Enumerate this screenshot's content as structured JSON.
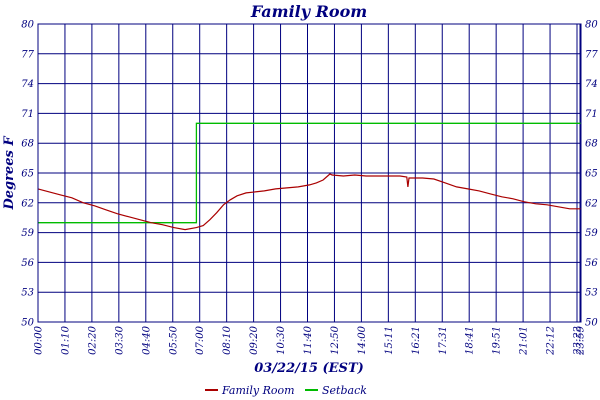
{
  "chart_data": {
    "type": "line",
    "title": "Family Room",
    "xlabel": "03/22/15 (EST)",
    "ylabel": "Degrees F",
    "ylim": [
      50,
      80
    ],
    "y_ticks": [
      50,
      53,
      56,
      59,
      62,
      65,
      68,
      71,
      74,
      77,
      80
    ],
    "x_range_hours": [
      0,
      24
    ],
    "x_tick_labels": [
      "00:00",
      "01:10",
      "02:20",
      "03:30",
      "04:40",
      "05:50",
      "07:00",
      "08:10",
      "09:20",
      "10:30",
      "11:40",
      "12:50",
      "14:00",
      "15:11",
      "16:21",
      "17:31",
      "18:41",
      "19:51",
      "21:01",
      "22:12",
      "23:22",
      "23:59"
    ],
    "grid": true,
    "legend_position": "bottom",
    "colors": {
      "axes": "#00007f",
      "grid": "#00007f",
      "family_room": "#aa0000",
      "setback": "#00bb00",
      "title": "#00007f"
    },
    "series": [
      {
        "name": "Family Room",
        "color": "#aa0000",
        "x_hours": [
          0,
          0.5,
          1.0,
          1.5,
          2.0,
          2.5,
          3.0,
          3.5,
          4.0,
          4.5,
          5.0,
          5.5,
          6.0,
          6.5,
          7.0,
          7.3,
          7.6,
          7.9,
          8.2,
          8.5,
          8.8,
          9.2,
          9.6,
          10.0,
          10.5,
          11.0,
          11.5,
          12.0,
          12.3,
          12.6,
          12.9,
          13.0,
          13.5,
          14.0,
          14.5,
          15.0,
          15.5,
          16.0,
          16.3,
          16.35,
          16.4,
          16.5,
          17.0,
          17.5,
          18.0,
          18.5,
          19.0,
          19.5,
          20.0,
          20.5,
          21.0,
          21.5,
          22.0,
          22.5,
          23.0,
          23.5,
          24.0
        ],
        "values": [
          63.4,
          63.1,
          62.8,
          62.5,
          62.0,
          61.7,
          61.3,
          60.9,
          60.6,
          60.3,
          60.0,
          59.8,
          59.5,
          59.3,
          59.5,
          59.7,
          60.3,
          61.0,
          61.8,
          62.3,
          62.7,
          63.0,
          63.1,
          63.2,
          63.4,
          63.5,
          63.6,
          63.8,
          64.0,
          64.3,
          64.9,
          64.8,
          64.7,
          64.8,
          64.7,
          64.7,
          64.7,
          64.7,
          64.6,
          63.6,
          64.5,
          64.5,
          64.5,
          64.4,
          64.0,
          63.6,
          63.4,
          63.2,
          62.9,
          62.6,
          62.4,
          62.1,
          61.9,
          61.8,
          61.6,
          61.4,
          61.4
        ]
      },
      {
        "name": "Setback",
        "color": "#00bb00",
        "x_hours": [
          0,
          7.0,
          7.0,
          24.0
        ],
        "values": [
          60.0,
          60.0,
          70.0,
          70.0
        ]
      }
    ]
  }
}
